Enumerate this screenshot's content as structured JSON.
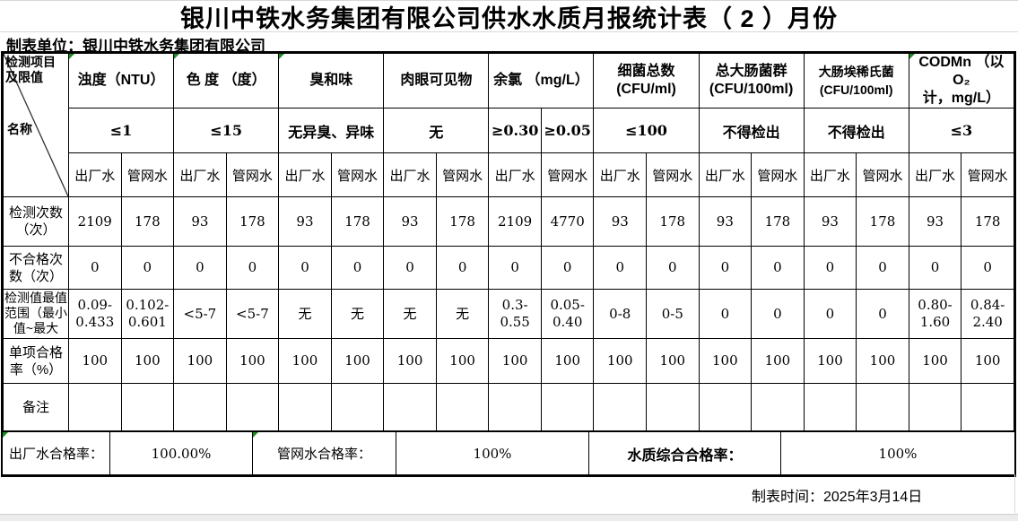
{
  "title": "银川中铁水务集团有限公司供水水质月报统计表（ 2 ）月份",
  "prepared_by": "制表单位：银川中铁水务集团有限公司",
  "prepared_time": "制表时间：2025年3月14日",
  "corner": {
    "top": "检测项目及限值",
    "bottom": "名称"
  },
  "columns": [
    {
      "name": "浊度（NTU）",
      "limit": "≤1"
    },
    {
      "name": "色 度 （度）",
      "limit": "≤15"
    },
    {
      "name": "臭和味",
      "limit": "无异臭、异味"
    },
    {
      "name": "肉眼可见物",
      "limit": "无"
    },
    {
      "name": "余氯 （mg/L）",
      "limit_factory": "≥0.30",
      "limit_pipe": "≥0.05"
    },
    {
      "name": "细菌总数\n(CFU/ml)",
      "limit": "≤100"
    },
    {
      "name": "总大肠菌群\n(CFU/100ml)",
      "limit": "不得检出"
    },
    {
      "name": "大肠埃稀氏菌\n(CFU/100ml)",
      "limit": "不得检出"
    },
    {
      "name": "CODMn （以O₂\n计，mg/L）",
      "limit": "≤3"
    }
  ],
  "water_types": [
    "出厂水",
    "管网水",
    "出厂水",
    "管网水",
    "出厂水",
    "管网水",
    "出厂水",
    "管网水",
    "出厂水",
    "管网水",
    "出厂水",
    "管网水",
    "出厂水",
    "管网水",
    "出厂水",
    "管网水",
    "出厂水",
    "管网水"
  ],
  "rows": [
    {
      "label": "检测次数（次）",
      "values": [
        "2109",
        "178",
        "93",
        "178",
        "93",
        "178",
        "93",
        "178",
        "2109",
        "4770",
        "93",
        "178",
        "93",
        "178",
        "93",
        "178",
        "93",
        "178"
      ]
    },
    {
      "label": "不合格次数（次）",
      "values": [
        "0",
        "0",
        "0",
        "0",
        "0",
        "0",
        "0",
        "0",
        "0",
        "0",
        "0",
        "0",
        "0",
        "0",
        "0",
        "0",
        "0",
        "0"
      ]
    },
    {
      "label": "检测值最值范围（最小值~最大值）",
      "values": [
        "0.09-0.433",
        "0.102-0.601",
        "<5-7",
        "<5-7",
        "无",
        "无",
        "无",
        "无",
        "0.3-0.55",
        "0.05-0.40",
        "0-8",
        "0-5",
        "0",
        "0",
        "0",
        "0",
        "0.80-1.60",
        "0.84-2.40"
      ]
    },
    {
      "label": "单项合格率（%）",
      "values": [
        "100",
        "100",
        "100",
        "100",
        "100",
        "100",
        "100",
        "100",
        "100",
        "100",
        "100",
        "100",
        "100",
        "100",
        "100",
        "100",
        "100",
        "100"
      ]
    },
    {
      "label": "备注",
      "values": [
        "",
        "",
        "",
        "",
        "",
        "",
        "",
        "",
        "",
        "",
        "",
        "",
        "",
        "",
        "",
        "",
        "",
        ""
      ]
    }
  ],
  "summary": [
    {
      "label": "出厂水合格率：",
      "value": "100.00%"
    },
    {
      "label": "管网水合格率：",
      "value": "100%"
    },
    {
      "label": "水质综合合格率：",
      "value": "100%"
    }
  ],
  "colors": {
    "border": "#000000",
    "green_marker": "#1f8b24",
    "footer_strip": "#ebebeb",
    "faint_line": "#d8d8d8"
  }
}
